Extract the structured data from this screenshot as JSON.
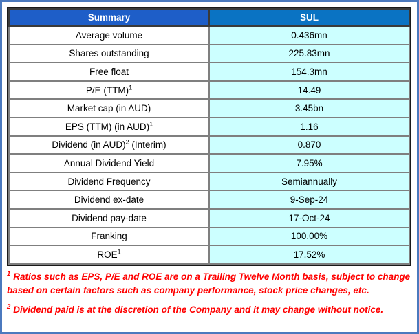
{
  "colors": {
    "outer_border": "#4B79BE",
    "table_border": "#1a1a1a",
    "grid_line": "#7F7F7F",
    "header_left_bg": "#1E5EC8",
    "header_right_bg": "#0A73C3",
    "header_text": "#FFFFFF",
    "value_bg": "#CCFFFF",
    "label_text": "#000000",
    "footnote_red": "#FF0000"
  },
  "table": {
    "header": {
      "left": "Summary",
      "right": "SUL"
    },
    "rows": [
      {
        "label": "Average volume",
        "sup": "",
        "suffix": "",
        "value": "0.436mn"
      },
      {
        "label": "Shares outstanding",
        "sup": "",
        "suffix": "",
        "value": "225.83mn"
      },
      {
        "label": "Free float",
        "sup": "",
        "suffix": "",
        "value": "154.3mn"
      },
      {
        "label": "P/E (TTM)",
        "sup": "1",
        "suffix": "",
        "value": "14.49"
      },
      {
        "label": "Market cap (in AUD)",
        "sup": "",
        "suffix": "",
        "value": "3.45bn"
      },
      {
        "label": "EPS (TTM) (in AUD)",
        "sup": "1",
        "suffix": "",
        "value": "1.16"
      },
      {
        "label": "Dividend (in AUD)",
        "sup": "2",
        "suffix": " (Interim)",
        "value": "0.870"
      },
      {
        "label": "Annual Dividend Yield",
        "sup": "",
        "suffix": "",
        "value": "7.95%"
      },
      {
        "label": "Dividend Frequency",
        "sup": "",
        "suffix": "",
        "value": "Semiannually"
      },
      {
        "label": "Dividend ex-date",
        "sup": "",
        "suffix": "",
        "value": "9-Sep-24"
      },
      {
        "label": "Dividend pay-date",
        "sup": "",
        "suffix": "",
        "value": "17-Oct-24"
      },
      {
        "label": "Franking",
        "sup": "",
        "suffix": "",
        "value": "100.00%"
      },
      {
        "label": "ROE",
        "sup": "1",
        "suffix": "",
        "value": "17.52%"
      }
    ]
  },
  "footnotes": [
    {
      "sup": "1",
      "text": "Ratios such as EPS, P/E and ROE are on a Trailing Twelve Month basis, subject to change based on certain factors such as company performance, stock price changes, etc."
    },
    {
      "sup": "2",
      "text": "Dividend paid is at the discretion of the Company and it may change without notice."
    }
  ]
}
